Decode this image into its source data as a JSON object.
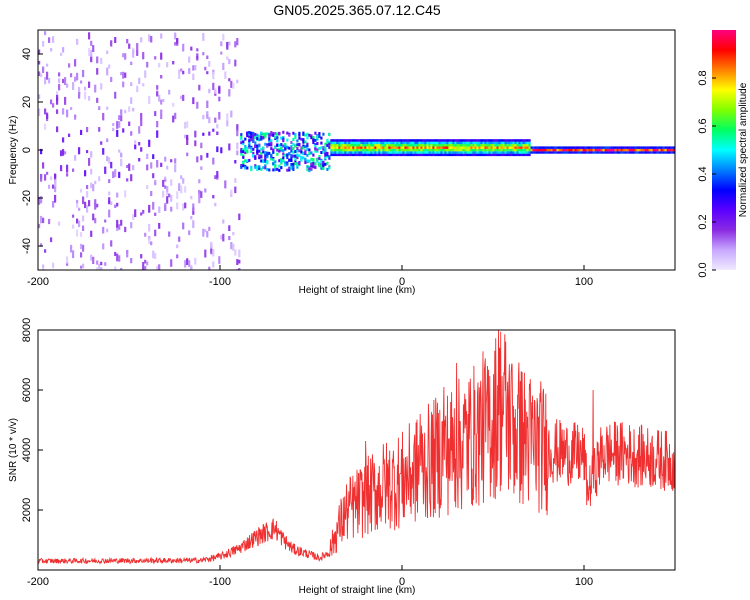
{
  "title": "GN05.2025.365.07.12.C45",
  "chart_data": [
    {
      "type": "heatmap",
      "xlabel": "Height of straight line (km)",
      "ylabel": "Frequency (Hz)",
      "xlim": [
        -200,
        150
      ],
      "ylim": [
        -50,
        50
      ],
      "xticks": [
        "-200",
        "-100",
        "0",
        "100"
      ],
      "xtick_values": [
        -200,
        -100,
        0,
        100
      ],
      "yticks": [
        "-40",
        "-20",
        "0",
        "20",
        "40"
      ],
      "ytick_values": [
        -40,
        -20,
        0,
        20,
        40
      ],
      "colorbar": {
        "label": "Normalized spectral amplitude",
        "range": [
          0,
          1
        ],
        "ticks": [
          "0.0",
          "0.2",
          "0.4",
          "0.6",
          "0.8"
        ],
        "tick_values": [
          0.0,
          0.2,
          0.4,
          0.6,
          0.8
        ],
        "colormap": [
          "#f0eaff",
          "#c8a8ff",
          "#8a2be2",
          "#5a00ff",
          "#0000ff",
          "#0080ff",
          "#00ffff",
          "#00ff60",
          "#80ff00",
          "#ffff00",
          "#ff8000",
          "#ff0000",
          "#ff0080"
        ]
      },
      "regions": [
        {
          "x_range": [
            -200,
            -90
          ],
          "freq_range": [
            -50,
            50
          ],
          "amplitude": 0.1,
          "character": "scattered noise"
        },
        {
          "x_range": [
            -90,
            -40
          ],
          "freq_range": [
            -8,
            8
          ],
          "amplitude": 0.35,
          "character": "broadening signal"
        },
        {
          "x_range": [
            -40,
            70
          ],
          "freq_range": [
            -2,
            4
          ],
          "amplitude": 0.8,
          "character": "narrow band"
        },
        {
          "x_range": [
            70,
            150
          ],
          "freq_range": [
            -1,
            1
          ],
          "amplitude": 0.9,
          "character": "steady line"
        }
      ]
    },
    {
      "type": "line",
      "xlabel": "Height of straight line (km)",
      "ylabel": "SNR (10 * v/v)",
      "xlim": [
        -200,
        150
      ],
      "ylim": [
        0,
        8000
      ],
      "xticks": [
        "-200",
        "-100",
        "0",
        "100"
      ],
      "xtick_values": [
        -200,
        -100,
        0,
        100
      ],
      "yticks": [
        "2000",
        "4000",
        "6000",
        "8000"
      ],
      "ytick_values": [
        2000,
        4000,
        6000,
        8000
      ],
      "series": [
        {
          "name": "SNR",
          "color": "#f03030",
          "envelope": {
            "x": [
              -200,
              -110,
              -100,
              -90,
              -80,
              -70,
              -65,
              -60,
              -50,
              -45,
              -40,
              -35,
              -30,
              -20,
              -10,
              0,
              10,
              20,
              30,
              40,
              50,
              55,
              60,
              70,
              80,
              90,
              100,
              102,
              110,
              120,
              130,
              140,
              150
            ],
            "y": [
              300,
              320,
              450,
              700,
              1100,
              1400,
              1000,
              700,
              500,
              400,
              600,
              1400,
              2000,
              2400,
              2800,
              3000,
              3400,
              3800,
              4100,
              4500,
              5000,
              5600,
              4800,
              4300,
              4000,
              3900,
              3800,
              2600,
              3900,
              3900,
              3800,
              3700,
              3600
            ]
          },
          "spikes": [
            {
              "x": 53,
              "y": 8000
            },
            {
              "x": 30,
              "y": 6900
            },
            {
              "x": 47,
              "y": 6800
            },
            {
              "x": 60,
              "y": 6600
            },
            {
              "x": 65,
              "y": 6300
            },
            {
              "x": 23,
              "y": 6100
            },
            {
              "x": 40,
              "y": 6000
            },
            {
              "x": 105,
              "y": 6000
            },
            {
              "x": 10,
              "y": 5200
            },
            {
              "x": -20,
              "y": 4300
            }
          ]
        }
      ]
    }
  ]
}
